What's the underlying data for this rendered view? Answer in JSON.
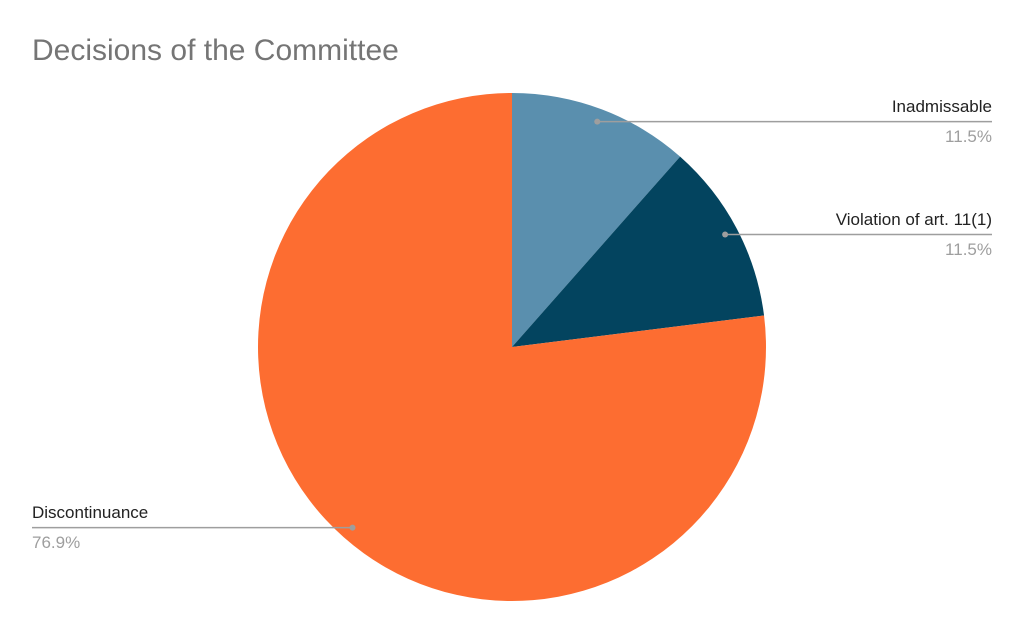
{
  "chart_data": {
    "type": "pie",
    "title": "Decisions of the Committee",
    "categories": [
      "Inadmissable",
      "Violation of art. 11(1)",
      "Discontinuance"
    ],
    "values": [
      11.5,
      11.5,
      76.9
    ],
    "value_labels": [
      "11.5%",
      "11.5%",
      "76.9%"
    ],
    "colors": [
      "#5a8fae",
      "#03445f",
      "#fd6d31"
    ]
  }
}
